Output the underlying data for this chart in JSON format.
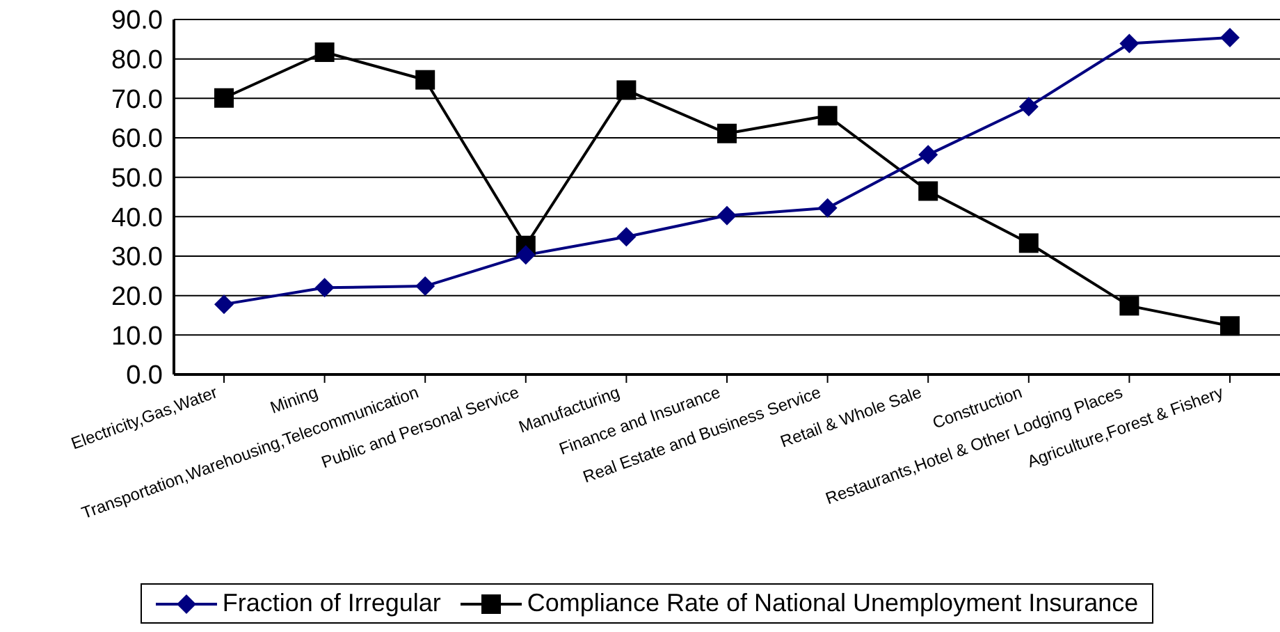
{
  "chart_data": {
    "type": "line",
    "categories": [
      "Electricity,Gas,Water",
      "Mining",
      "Transportation,Warehousing,Telecommunication",
      "Public and Personal Service",
      "Manufacturing",
      "Finance and Insurance",
      "Real Estate and Business Service",
      "Retail & Whole Sale",
      "Construction",
      "Restaurants,Hotel & Other Lodging Places",
      "Agriculture,Forest & Fishery"
    ],
    "series": [
      {
        "name": "Fraction of Irregular",
        "color": "#000080",
        "marker": "diamond",
        "values": [
          17.8,
          22.0,
          22.4,
          30.3,
          34.9,
          40.3,
          42.2,
          55.7,
          67.9,
          83.9,
          85.4
        ]
      },
      {
        "name": "Compliance Rate of National Unemployment Insurance",
        "color": "#000000",
        "marker": "square",
        "values": [
          70.1,
          81.7,
          74.7,
          32.7,
          72.1,
          61.1,
          65.6,
          46.5,
          33.3,
          17.4,
          12.3
        ]
      }
    ],
    "ylim": [
      0,
      90
    ],
    "yticks": [
      {
        "value": 0,
        "label": "0.0"
      },
      {
        "value": 10,
        "label": "10.0"
      },
      {
        "value": 20,
        "label": "20.0"
      },
      {
        "value": 30,
        "label": "30.0"
      },
      {
        "value": 40,
        "label": "40.0"
      },
      {
        "value": 50,
        "label": "50.0"
      },
      {
        "value": 60,
        "label": "60.0"
      },
      {
        "value": 70,
        "label": "70.0"
      },
      {
        "value": 80,
        "label": "80.0"
      },
      {
        "value": 90,
        "label": "90.0"
      }
    ],
    "grid": "y",
    "legend": "bottom"
  }
}
